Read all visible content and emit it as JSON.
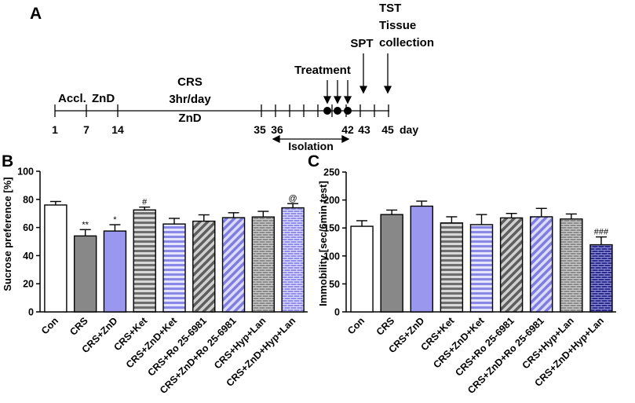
{
  "timeline": {
    "panel_label": "A",
    "phase_accl": "Accl.",
    "phase_znd": "ZnD",
    "crs_line1": "CRS",
    "crs_line2": "3hr/day",
    "crs_line3": "ZnD",
    "treatment_label": "Treatment",
    "spt_label": "SPT",
    "tst_label": "TST",
    "tissue_label1": "Tissue",
    "tissue_label2": "collection",
    "isolation_label": "Isolation",
    "day_unit": "day",
    "day_ticks": [
      "1",
      "7",
      "14",
      "35",
      "36",
      "42",
      "43",
      "45"
    ]
  },
  "chart_data": [
    {
      "type": "bar",
      "panel_label": "B",
      "title": "",
      "xlabel": "",
      "ylabel": "Sucrose preference [%]",
      "ylim": [
        0,
        100
      ],
      "yticks": [
        "0",
        "20",
        "40",
        "60",
        "80",
        "100"
      ],
      "categories": [
        "Con",
        "CRS",
        "CRS+ZnD",
        "CRS+Ket",
        "CRS+ZnD+Ket",
        "CRS+Ro 25-6981",
        "CRS+ZnD+Ro 25-6981",
        "CRS+Hyp+Lan",
        "CRS+ZnD+Hyp+Lan"
      ],
      "values": [
        76,
        54,
        57.5,
        72.5,
        62.5,
        64.5,
        67,
        67.5,
        74
      ],
      "errors": [
        2.5,
        4.5,
        4.5,
        2,
        4,
        4.5,
        3.5,
        4,
        3
      ],
      "annotations": [
        "",
        "**",
        "*",
        "#",
        "",
        "",
        "",
        "",
        "@"
      ],
      "fills": [
        "white",
        "grey",
        "lavender",
        "hstripe-grey",
        "hstripe-lavender",
        "diag-grey",
        "diag-lavender",
        "brick-grey",
        "brick-lavender"
      ]
    },
    {
      "type": "bar",
      "panel_label": "C",
      "title": "",
      "xlabel": "",
      "ylabel": "Immobility [sec/6min test]",
      "ylim": [
        0,
        250
      ],
      "yticks": [
        "0",
        "50",
        "100",
        "150",
        "200",
        "250"
      ],
      "categories": [
        "Con",
        "CRS",
        "CRS+ZnD",
        "CRS+Ket",
        "CRS+ZnD+Ket",
        "CRS+Ro 25-6981",
        "CRS+ZnD+Ro 25-6981",
        "CRS+Hyp+Lan",
        "CRS+ZnD+Hyp+Lan"
      ],
      "values": [
        153,
        174,
        189,
        159,
        156,
        168,
        170,
        166,
        120
      ],
      "errors": [
        10,
        8,
        9,
        11,
        18,
        8,
        15,
        9,
        14
      ],
      "annotations": [
        "",
        "",
        "",
        "",
        "",
        "",
        "",
        "",
        "###"
      ],
      "fills": [
        "white",
        "grey",
        "lavender",
        "hstripe-grey",
        "hstripe-lavender",
        "diag-grey",
        "diag-lavender",
        "brick-grey",
        "brick-navy"
      ]
    }
  ],
  "colors": {
    "grey": "#888888",
    "lavender": "#9a98ee",
    "navy": "#2b2c8c",
    "axis": "#000000"
  }
}
